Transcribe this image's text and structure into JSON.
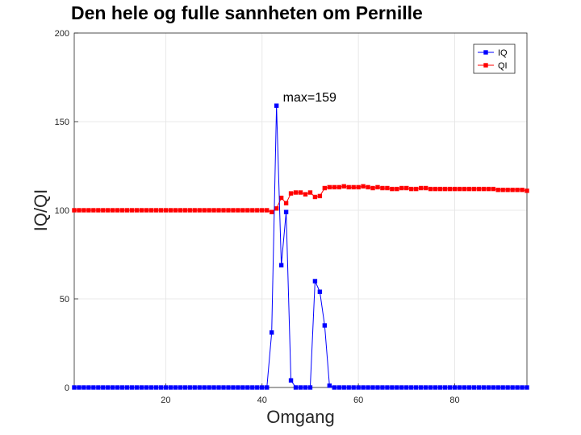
{
  "chart_data": {
    "type": "line",
    "title": "Den hele og fulle sannheten om Pernille",
    "xlabel": "Omgang",
    "ylabel": "IQ/QI",
    "xlim": [
      1,
      95
    ],
    "ylim": [
      0,
      200
    ],
    "xticks": [
      20,
      40,
      60,
      80
    ],
    "yticks": [
      0,
      50,
      100,
      150,
      200
    ],
    "grid": true,
    "legend_position": "top-right",
    "annotation": {
      "text": "max=159",
      "x": 44,
      "y": 164
    },
    "series": [
      {
        "name": "IQ",
        "color": "#0000ff",
        "x": [
          1,
          2,
          3,
          4,
          5,
          6,
          7,
          8,
          9,
          10,
          11,
          12,
          13,
          14,
          15,
          16,
          17,
          18,
          19,
          20,
          21,
          22,
          23,
          24,
          25,
          26,
          27,
          28,
          29,
          30,
          31,
          32,
          33,
          34,
          35,
          36,
          37,
          38,
          39,
          40,
          41,
          42,
          43,
          44,
          45,
          46,
          47,
          48,
          49,
          50,
          51,
          52,
          53,
          54,
          55,
          56,
          57,
          58,
          59,
          60,
          61,
          62,
          63,
          64,
          65,
          66,
          67,
          68,
          69,
          70,
          71,
          72,
          73,
          74,
          75,
          76,
          77,
          78,
          79,
          80,
          81,
          82,
          83,
          84,
          85,
          86,
          87,
          88,
          89,
          90,
          91,
          92,
          93,
          94,
          95
        ],
        "values": [
          0,
          0,
          0,
          0,
          0,
          0,
          0,
          0,
          0,
          0,
          0,
          0,
          0,
          0,
          0,
          0,
          0,
          0,
          0,
          0,
          0,
          0,
          0,
          0,
          0,
          0,
          0,
          0,
          0,
          0,
          0,
          0,
          0,
          0,
          0,
          0,
          0,
          0,
          0,
          0,
          0,
          31,
          159,
          69,
          99,
          4,
          0,
          0,
          0,
          0,
          60,
          54,
          35,
          1,
          0,
          0,
          0,
          0,
          0,
          0,
          0,
          0,
          0,
          0,
          0,
          0,
          0,
          0,
          0,
          0,
          0,
          0,
          0,
          0,
          0,
          0,
          0,
          0,
          0,
          0,
          0,
          0,
          0,
          0,
          0,
          0,
          0,
          0,
          0,
          0,
          0,
          0,
          0,
          0,
          0
        ]
      },
      {
        "name": "QI",
        "color": "#ff0000",
        "x": [
          1,
          2,
          3,
          4,
          5,
          6,
          7,
          8,
          9,
          10,
          11,
          12,
          13,
          14,
          15,
          16,
          17,
          18,
          19,
          20,
          21,
          22,
          23,
          24,
          25,
          26,
          27,
          28,
          29,
          30,
          31,
          32,
          33,
          34,
          35,
          36,
          37,
          38,
          39,
          40,
          41,
          42,
          43,
          44,
          45,
          46,
          47,
          48,
          49,
          50,
          51,
          52,
          53,
          54,
          55,
          56,
          57,
          58,
          59,
          60,
          61,
          62,
          63,
          64,
          65,
          66,
          67,
          68,
          69,
          70,
          71,
          72,
          73,
          74,
          75,
          76,
          77,
          78,
          79,
          80,
          81,
          82,
          83,
          84,
          85,
          86,
          87,
          88,
          89,
          90,
          91,
          92,
          93,
          94,
          95
        ],
        "values": [
          100,
          100,
          100,
          100,
          100,
          100,
          100,
          100,
          100,
          100,
          100,
          100,
          100,
          100,
          100,
          100,
          100,
          100,
          100,
          100,
          100,
          100,
          100,
          100,
          100,
          100,
          100,
          100,
          100,
          100,
          100,
          100,
          100,
          100,
          100,
          100,
          100,
          100,
          100,
          100,
          100,
          99,
          101,
          107,
          104,
          109.5,
          110,
          110,
          109,
          110,
          107.5,
          108,
          112.5,
          113,
          113,
          113,
          113.5,
          113,
          113,
          113,
          113.5,
          113,
          112.5,
          113,
          112.5,
          112.5,
          112,
          112,
          112.5,
          112.5,
          112,
          112,
          112.5,
          112.5,
          112,
          112,
          112,
          112,
          112,
          112,
          112,
          112,
          112,
          112,
          112,
          112,
          112,
          112,
          111.5,
          111.5,
          111.5,
          111.5,
          111.5,
          111.5,
          111
        ]
      }
    ]
  }
}
